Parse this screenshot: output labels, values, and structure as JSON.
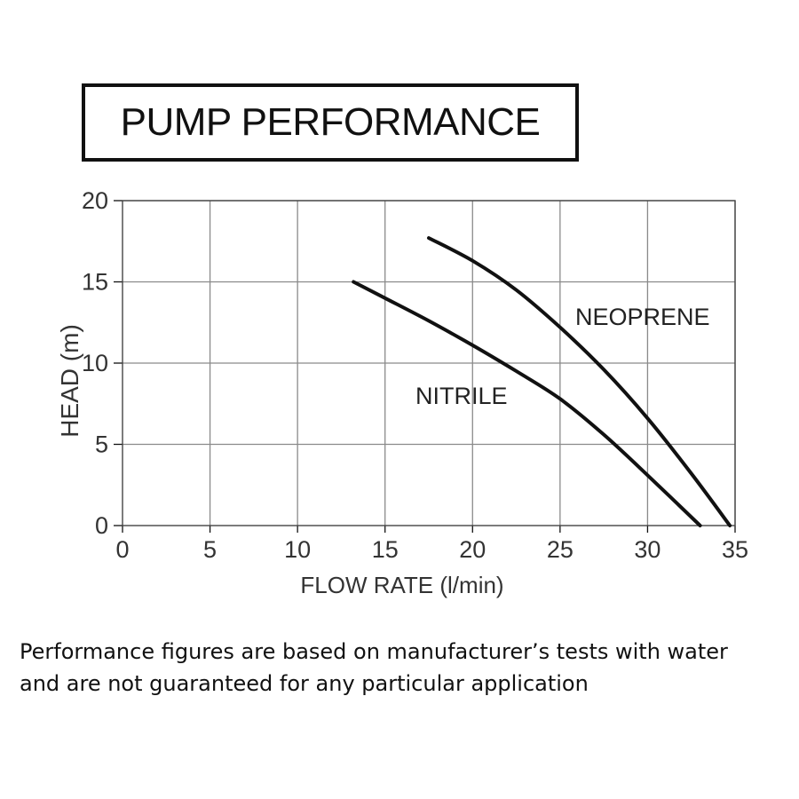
{
  "header": {
    "title": "PUMP PERFORMANCE"
  },
  "chart_data": {
    "type": "line",
    "xlabel": "FLOW RATE (l/min)",
    "ylabel": "HEAD (m)",
    "xlim": [
      0,
      35
    ],
    "ylim": [
      0,
      20
    ],
    "xticks": [
      "0",
      "5",
      "10",
      "15",
      "20",
      "25",
      "30",
      "35"
    ],
    "yticks": [
      "0",
      "5",
      "10",
      "15",
      "20"
    ],
    "grid": true,
    "series": [
      {
        "name": "NEOPRENE",
        "x": [
          17.5,
          20,
          22.5,
          25,
          27.5,
          30,
          32.5,
          34.7
        ],
        "y": [
          17.7,
          16.3,
          14.5,
          12.2,
          9.6,
          6.6,
          3.2,
          0
        ]
      },
      {
        "name": "NITRILE",
        "x": [
          13.2,
          15,
          17.5,
          20,
          22.5,
          25,
          27.5,
          30,
          33
        ],
        "y": [
          15,
          14,
          12.6,
          11.1,
          9.5,
          7.8,
          5.6,
          3.1,
          0
        ]
      }
    ]
  },
  "colors": {
    "lines": "#111111",
    "grid": "#8a8a8a",
    "text": "#111111"
  },
  "footer": {
    "line1": "Performance figures are based on manufacturer’s tests with water",
    "line2": "and are not guaranteed for any particular application"
  }
}
